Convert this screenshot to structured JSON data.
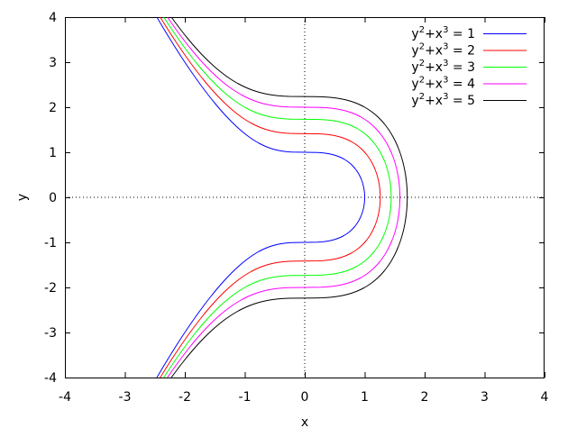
{
  "chart_data": {
    "type": "line",
    "title": "",
    "xlabel": "x",
    "ylabel": "y",
    "xlim": [
      -4,
      4
    ],
    "ylim": [
      -4,
      4
    ],
    "xticks": [
      "-4",
      "-3",
      "-2",
      "-1",
      "0",
      "1",
      "2",
      "3",
      "4"
    ],
    "yticks": [
      "-4",
      "-3",
      "-2",
      "-1",
      "0",
      "1",
      "2",
      "3",
      "4"
    ],
    "zero_axes": "dotted",
    "grid": false,
    "legend_position": "top-right",
    "sample_y": [
      -4,
      -3.5,
      -3,
      -2.5,
      -2,
      -1.5,
      -1,
      -0.5,
      0,
      0.5,
      1,
      1.5,
      2,
      2.5,
      3,
      3.5,
      4
    ],
    "series": [
      {
        "name": "y2+x3 = 1",
        "label_base": "y",
        "label_mid": "+x",
        "label_end": " = 1",
        "c": 1,
        "color": "#0000ff",
        "x": [
          -2.466,
          -2.241,
          -2,
          -1.738,
          -1.442,
          -1.077,
          0,
          0.909,
          1,
          0.909,
          0,
          -1.077,
          -1.442,
          -1.738,
          -2,
          -2.241,
          -2.466
        ]
      },
      {
        "name": "y2+x3 = 2",
        "label_base": "y",
        "label_mid": "+x",
        "label_end": " = 2",
        "c": 2,
        "color": "#ff0000",
        "x": [
          -2.41,
          -2.172,
          -1.913,
          -1.62,
          -1.26,
          -0.63,
          1,
          1.205,
          1.26,
          1.205,
          1,
          -0.63,
          -1.26,
          -1.62,
          -1.913,
          -2.172,
          -2.41
        ]
      },
      {
        "name": "y2+x3 = 3",
        "label_base": "y",
        "label_mid": "+x",
        "label_end": " = 3",
        "c": 3,
        "color": "#00ff00",
        "x": [
          -2.351,
          -2.099,
          -1.817,
          -1.481,
          -1,
          0.909,
          1.26,
          1.401,
          1.442,
          1.401,
          1.26,
          0.909,
          -1,
          -1.481,
          -1.817,
          -2.099,
          -2.351
        ]
      },
      {
        "name": "y2+x3 = 4",
        "label_base": "y",
        "label_mid": "+x",
        "label_end": " = 4",
        "c": 4,
        "color": "#ff00ff",
        "x": [
          -2.289,
          -2.021,
          -1.71,
          -1.31,
          0,
          1.205,
          1.442,
          1.554,
          1.587,
          1.554,
          1.442,
          1.205,
          0,
          -1.31,
          -1.71,
          -2.021,
          -2.289
        ]
      },
      {
        "name": "y2+x3 = 5",
        "label_base": "y",
        "label_mid": "+x",
        "label_end": " = 5",
        "c": 5,
        "color": "#000000",
        "x": [
          -2.224,
          -1.935,
          -1.587,
          -1.077,
          1,
          1.401,
          1.587,
          1.681,
          1.71,
          1.681,
          1.587,
          1.401,
          1,
          -1.077,
          -1.587,
          -1.935,
          -2.224
        ]
      }
    ]
  }
}
